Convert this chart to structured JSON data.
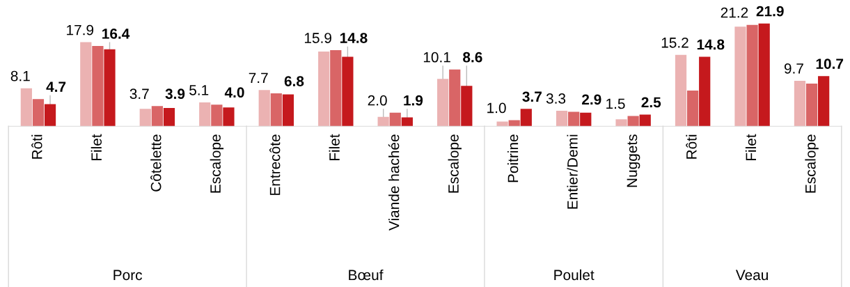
{
  "chart_data": [
    {
      "type": "bar",
      "xlabel": "Porc",
      "categories": [
        "Rôti",
        "Filet",
        "Côtelette",
        "Escalope"
      ],
      "grid": false,
      "legend": false,
      "series": [
        {
          "color": "#ebb2b2",
          "values": [
            8.1,
            17.9,
            3.7,
            5.1
          ],
          "value_labels": [
            "8.1",
            "17.9",
            "3.7",
            "5.1"
          ]
        },
        {
          "color": "#d96566",
          "values": [
            5.8,
            17.1,
            4.3,
            4.6
          ]
        },
        {
          "color": "#c5191d",
          "values": [
            4.7,
            16.4,
            3.9,
            4.0
          ],
          "value_labels": [
            "4.7",
            "16.4",
            "3.9",
            "4.0"
          ]
        }
      ]
    },
    {
      "type": "bar",
      "xlabel": "Bœuf",
      "categories": [
        "Entrecôte",
        "Filet",
        "Viande hachée",
        "Escalope"
      ],
      "grid": false,
      "legend": false,
      "series": [
        {
          "color": "#ebb2b2",
          "values": [
            7.7,
            15.9,
            2.0,
            10.1
          ],
          "value_labels": [
            "7.7",
            "15.9",
            "2.0",
            "10.1"
          ]
        },
        {
          "color": "#d96566",
          "values": [
            7.0,
            16.2,
            2.9,
            12.1
          ]
        },
        {
          "color": "#c5191d",
          "values": [
            6.8,
            14.8,
            1.9,
            8.6
          ],
          "value_labels": [
            "6.8",
            "14.8",
            "1.9",
            "8.6"
          ]
        }
      ]
    },
    {
      "type": "bar",
      "xlabel": "Poulet",
      "categories": [
        "Poitrine",
        "Entier/Demi",
        "Nuggets"
      ],
      "grid": false,
      "legend": false,
      "series": [
        {
          "color": "#ebb2b2",
          "values": [
            1.0,
            3.3,
            1.5
          ],
          "value_labels": [
            "1.0",
            "3.3",
            "1.5"
          ]
        },
        {
          "color": "#d96566",
          "values": [
            1.3,
            3.1,
            2.2
          ]
        },
        {
          "color": "#c5191d",
          "values": [
            3.7,
            2.9,
            2.5
          ],
          "value_labels": [
            "3.7",
            "2.9",
            "2.5"
          ]
        }
      ]
    },
    {
      "type": "bar",
      "xlabel": "Veau",
      "categories": [
        "Rôti",
        "Filet",
        "Escalope"
      ],
      "grid": false,
      "legend": false,
      "series": [
        {
          "color": "#ebb2b2",
          "values": [
            15.2,
            21.2,
            9.7
          ],
          "value_labels": [
            "15.2",
            "21.2",
            "9.7"
          ]
        },
        {
          "color": "#d96566",
          "values": [
            7.6,
            21.6,
            9.1
          ]
        },
        {
          "color": "#c5191d",
          "values": [
            14.8,
            21.9,
            10.7
          ],
          "value_labels": [
            "14.8",
            "21.9",
            "10.7"
          ]
        }
      ]
    }
  ]
}
